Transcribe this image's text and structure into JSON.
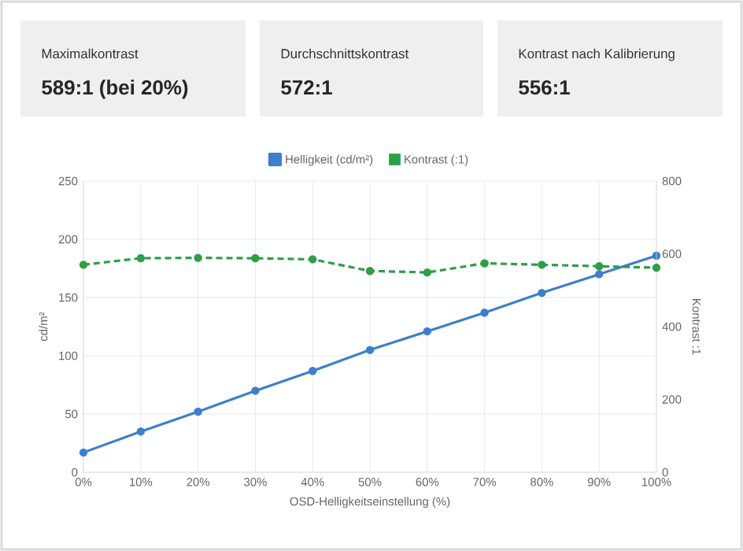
{
  "chart_data": {
    "type": "line",
    "annotations": [
      "Maximalkontrast",
      "589:1 (bei 20%)",
      "Durchschnittskontrast",
      "572:1",
      "Kontrast nach Kalibrierung",
      "556:1"
    ],
    "categories": [
      "0%",
      "10%",
      "20%",
      "30%",
      "40%",
      "50%",
      "60%",
      "70%",
      "80%",
      "90%",
      "100%"
    ],
    "xlabel": "OSD-Helligkeitseinstellung (%)",
    "ylabel": "cd/m²",
    "y2label": "Kontrast :1",
    "series": [
      {
        "name": "Helligkeit (cd/m²)",
        "color": "#3d7fcc",
        "line_style": "solid",
        "values": [
          17,
          35,
          52,
          70,
          87,
          105,
          121,
          137,
          154,
          170,
          186
        ]
      },
      {
        "name": "Kontrast (:1)",
        "color": "#2e9e48",
        "line_style": "dashed",
        "axis": "y2",
        "values": [
          570,
          588,
          589,
          588,
          585,
          553,
          549,
          574,
          570,
          566,
          562
        ]
      }
    ],
    "ylim": [
      0,
      250
    ],
    "yticks": [
      0,
      50,
      100,
      150,
      200,
      250
    ],
    "y2lim": [
      0,
      800
    ],
    "y2ticks": [
      0,
      200,
      400,
      600,
      800
    ],
    "grid": true,
    "legend": "top",
    "marker": "circle"
  }
}
